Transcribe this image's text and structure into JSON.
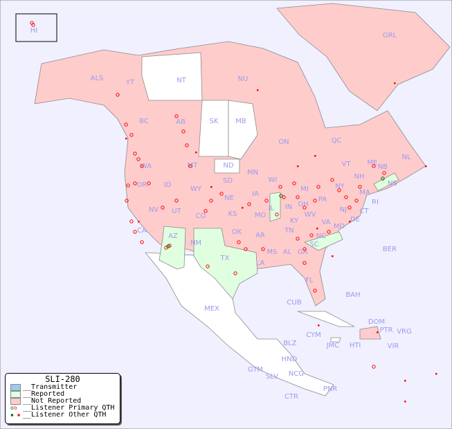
{
  "map": {
    "title": "SLI-280",
    "colors": {
      "background": "#f0f0ff",
      "not_reported": "#ffcccc",
      "reported": "#e0ffe0",
      "transmitter": "#99ccee",
      "unlisted": "#ffffff",
      "marker": "#ff0000",
      "marker_primary_green": "#006600"
    },
    "labels": [
      "HI",
      "ALS",
      "YT",
      "NT",
      "NU",
      "GRL",
      "BC",
      "AB",
      "SK",
      "MB",
      "ON",
      "QC",
      "NL",
      "NB",
      "NS",
      "WA",
      "OR",
      "ID",
      "MT",
      "WY",
      "ND",
      "SD",
      "NE",
      "MN",
      "WI",
      "IA",
      "IL",
      "IN",
      "MI",
      "OH",
      "PA",
      "NY",
      "VT",
      "NH",
      "ME",
      "MA",
      "CT",
      "RI",
      "NJ",
      "DE",
      "MD",
      "WV",
      "VA",
      "KY",
      "TN",
      "NC",
      "SC",
      "GA",
      "AL",
      "MS",
      "LA",
      "AR",
      "MO",
      "KS",
      "OK",
      "TX",
      "NM",
      "AZ",
      "UT",
      "CO",
      "NV",
      "CA",
      "FL",
      "BER",
      "BAH",
      "CUB",
      "MEX",
      "CYM",
      "JMC",
      "HTI",
      "DOM",
      "PTR",
      "VRG",
      "VIR",
      "BLZ",
      "GTM",
      "HND",
      "SLV",
      "NCG",
      "CTR",
      "PNR"
    ]
  },
  "legend": {
    "title": "SLI-280",
    "items": [
      {
        "label": "__Transmitter",
        "color": "#99ccee"
      },
      {
        "label": "__Reported",
        "color": "#e0ffe0"
      },
      {
        "label": "__Not Reported",
        "color": "#ffcccc"
      },
      {
        "label": "__Listener Primary QTH",
        "icon": "circle-markers"
      },
      {
        "label": "__Listener Other QTH",
        "icon": "square-markers"
      }
    ]
  }
}
